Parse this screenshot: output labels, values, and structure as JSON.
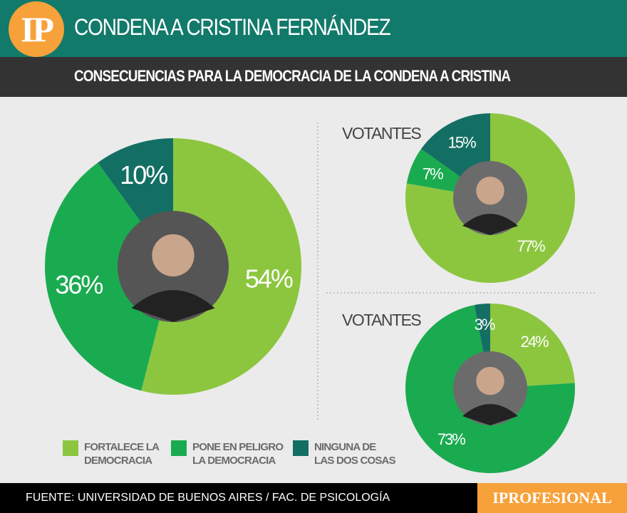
{
  "header": {
    "logo": "IP",
    "title": "CONDENA A CRISTINA FERNÁNDEZ",
    "subtitle": "CONSECUENCIAS PARA LA DEMOCRACIA DE LA CONDENA A CRISTINA"
  },
  "colors": {
    "fortalece": "#8cc63f",
    "peligro": "#1aab50",
    "ninguna": "#136f63"
  },
  "chart_data": [
    {
      "type": "pie",
      "categories": [
        "FORTALECE LA DEMOCRACIA",
        "PONE EN PELIGRO LA DEMOCRACIA",
        "NINGUNA DE LAS DOS COSAS"
      ],
      "values": [
        54,
        36,
        10
      ],
      "labels": [
        "54%",
        "36%",
        "10%"
      ],
      "title": "",
      "photo": "cristina-photo"
    },
    {
      "type": "pie",
      "categories": [
        "FORTALECE LA DEMOCRACIA",
        "PONE EN PELIGRO LA DEMOCRACIA",
        "NINGUNA DE LAS DOS COSAS"
      ],
      "values": [
        77,
        7,
        15
      ],
      "labels": [
        "77%",
        "7%",
        "15%"
      ],
      "title": "VOTANTES",
      "photo": "milei-photo"
    },
    {
      "type": "pie",
      "categories": [
        "FORTALECE LA DEMOCRACIA",
        "PONE EN PELIGRO LA DEMOCRACIA",
        "NINGUNA DE LAS DOS COSAS"
      ],
      "values": [
        24,
        73,
        3
      ],
      "labels": [
        "24%",
        "73%",
        "3%"
      ],
      "title": "VOTANTES",
      "photo": "massa-photo"
    }
  ],
  "legend": [
    {
      "line1": "FORTALECE LA",
      "line2": "DEMOCRACIA"
    },
    {
      "line1": "PONE EN PELIGRO",
      "line2": "LA DEMOCRACIA"
    },
    {
      "line1": "NINGUNA DE",
      "line2": "LAS DOS COSAS"
    }
  ],
  "footer": {
    "source": "FUENTE: UNIVERSIDAD DE BUENOS AIRES / FAC. DE PSICOLOGÍA",
    "brand": "IPROFESIONAL"
  }
}
